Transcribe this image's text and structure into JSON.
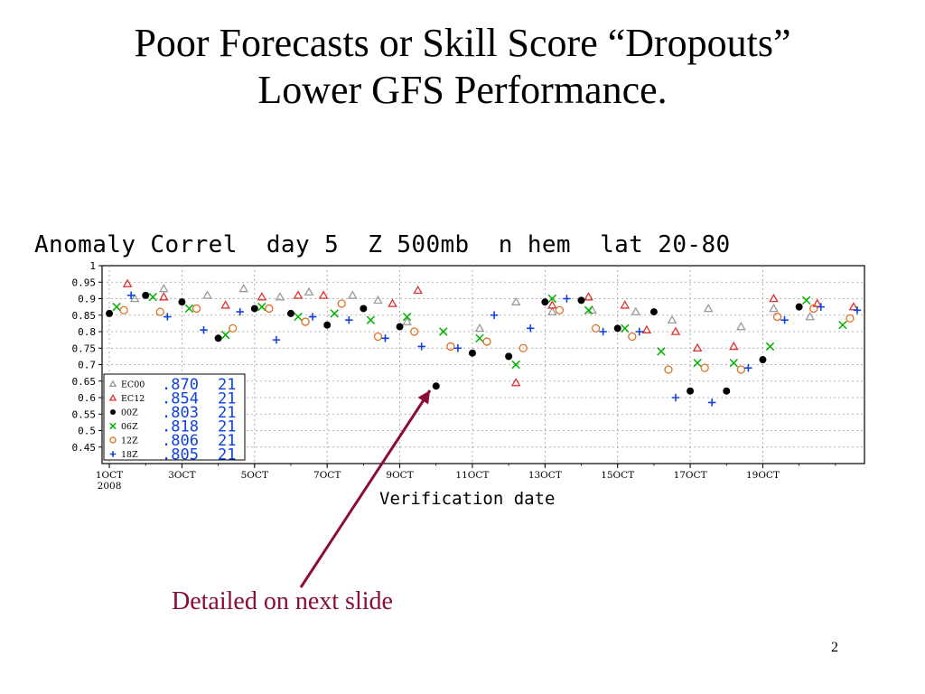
{
  "slide": {
    "title_line1": "Poor Forecasts or Skill Score “Dropouts”",
    "title_line2": "Lower GFS Performance.",
    "annotation": "Detailed on next slide",
    "page_number": "2"
  },
  "chart_data": {
    "type": "scatter",
    "title": "Anomaly Correl  day 5  Z 500mb  n hem  lat 20-80",
    "xlabel": "Verification date",
    "ylabel": "",
    "ylim": [
      0.4,
      1.0
    ],
    "yticks": [
      1,
      0.95,
      0.9,
      0.85,
      0.8,
      0.75,
      0.7,
      0.65,
      0.6,
      0.55,
      0.5,
      0.45
    ],
    "ytick_labels": [
      "1",
      "0.95",
      "0.9",
      "0.85",
      "0.8",
      "0.75",
      "0.7",
      "0.65",
      "0.6",
      "0.55",
      "0.5",
      "0.45"
    ],
    "xlim": [
      0.8,
      21.8
    ],
    "xticks": [
      1,
      3,
      5,
      7,
      9,
      11,
      13,
      15,
      17,
      19
    ],
    "xtick_labels": [
      "1OCT",
      "3OCT",
      "5OCT",
      "7OCT",
      "9OCT",
      "11OCT",
      "13OCT",
      "15OCT",
      "17OCT",
      "19OCT"
    ],
    "xtick_sublabel": "2008",
    "grid": true,
    "legend_position": "bottom-left",
    "series": [
      {
        "name": "EC00",
        "marker": "triangle-open",
        "color": "#9a9a9a",
        "score": ".870",
        "count": "21",
        "x": [
          1.7,
          2.5,
          3.7,
          4.7,
          5.7,
          6.5,
          7.7,
          8.4,
          9.2,
          11.2,
          12.2,
          13.2,
          14.3,
          15.5,
          16.5,
          17.5,
          18.4,
          19.3,
          20.3
        ],
        "y": [
          0.9,
          0.93,
          0.91,
          0.93,
          0.905,
          0.92,
          0.91,
          0.895,
          0.83,
          0.81,
          0.89,
          0.86,
          0.865,
          0.86,
          0.835,
          0.87,
          0.815,
          0.87,
          0.845
        ]
      },
      {
        "name": "EC12",
        "marker": "triangle-open",
        "color": "#e03030",
        "score": ".854",
        "count": "21",
        "x": [
          1.5,
          2.5,
          4.2,
          5.2,
          6.2,
          6.9,
          8.8,
          9.5,
          12.2,
          13.2,
          14.2,
          15.2,
          15.8,
          16.6,
          17.2,
          18.2,
          19.3,
          20.5,
          21.5
        ],
        "y": [
          0.945,
          0.905,
          0.88,
          0.905,
          0.91,
          0.91,
          0.885,
          0.925,
          0.645,
          0.88,
          0.905,
          0.88,
          0.805,
          0.8,
          0.75,
          0.755,
          0.9,
          0.885,
          0.875
        ]
      },
      {
        "name": "00Z",
        "marker": "dot",
        "color": "#000000",
        "score": ".803",
        "count": "21",
        "x": [
          1.0,
          2.0,
          3.0,
          4.0,
          5.0,
          6.0,
          7.0,
          8.0,
          9.0,
          10.0,
          11.0,
          12.0,
          13.0,
          14.0,
          15.0,
          16.0,
          17.0,
          18.0,
          19.0,
          20.0
        ],
        "y": [
          0.855,
          0.91,
          0.89,
          0.78,
          0.87,
          0.855,
          0.82,
          0.87,
          0.815,
          0.635,
          0.735,
          0.725,
          0.89,
          0.895,
          0.81,
          0.86,
          0.62,
          0.62,
          0.715,
          0.875
        ]
      },
      {
        "name": "06Z",
        "marker": "x",
        "color": "#00b000",
        "score": ".818",
        "count": "21",
        "x": [
          1.2,
          2.2,
          3.2,
          4.2,
          5.2,
          6.2,
          7.2,
          8.2,
          9.2,
          10.2,
          11.2,
          12.2,
          13.2,
          14.2,
          15.2,
          16.2,
          17.2,
          18.2,
          19.2,
          20.2,
          21.2
        ],
        "y": [
          0.875,
          0.905,
          0.87,
          0.79,
          0.875,
          0.845,
          0.855,
          0.835,
          0.845,
          0.8,
          0.78,
          0.7,
          0.9,
          0.865,
          0.81,
          0.74,
          0.705,
          0.705,
          0.755,
          0.895,
          0.82
        ]
      },
      {
        "name": "12Z",
        "marker": "circle-open",
        "color": "#e07020",
        "score": ".806",
        "count": "21",
        "x": [
          1.4,
          2.4,
          3.4,
          4.4,
          5.4,
          6.4,
          7.4,
          8.4,
          9.4,
          10.4,
          11.4,
          12.4,
          13.4,
          14.4,
          15.4,
          16.4,
          17.4,
          18.4,
          19.4,
          20.4,
          21.4
        ],
        "y": [
          0.865,
          0.86,
          0.87,
          0.81,
          0.87,
          0.83,
          0.885,
          0.785,
          0.8,
          0.755,
          0.77,
          0.75,
          0.865,
          0.81,
          0.785,
          0.685,
          0.69,
          0.685,
          0.845,
          0.87,
          0.84
        ]
      },
      {
        "name": "18Z",
        "marker": "plus",
        "color": "#1040e0",
        "score": ".805",
        "count": "21",
        "x": [
          1.6,
          2.6,
          3.6,
          4.6,
          5.6,
          6.6,
          7.6,
          8.6,
          9.6,
          10.6,
          11.6,
          12.6,
          13.6,
          14.6,
          15.6,
          16.6,
          17.6,
          18.6,
          19.6,
          20.6,
          21.6
        ],
        "y": [
          0.91,
          0.845,
          0.805,
          0.86,
          0.775,
          0.845,
          0.835,
          0.78,
          0.755,
          0.75,
          0.85,
          0.81,
          0.9,
          0.8,
          0.8,
          0.6,
          0.585,
          0.69,
          0.835,
          0.875,
          0.865
        ]
      }
    ]
  }
}
